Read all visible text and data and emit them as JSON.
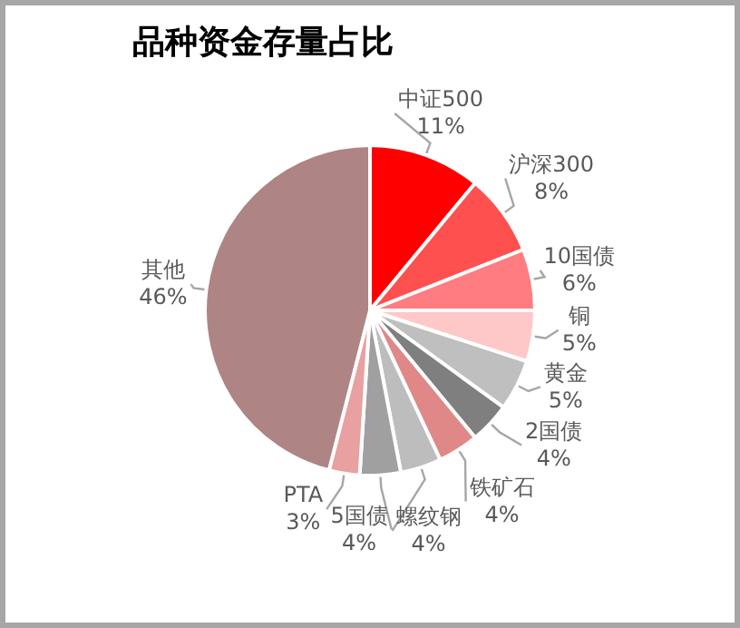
{
  "chart_data": {
    "type": "pie",
    "title": "品种资金存量占比",
    "categories": [
      "中证500",
      "沪深300",
      "10国债",
      "铜",
      "黄金",
      "2国债",
      "铁矿石",
      "螺纹钢",
      "5国债",
      "PTA",
      "其他"
    ],
    "values": [
      11,
      8,
      6,
      5,
      5,
      4,
      4,
      4,
      4,
      3,
      46
    ],
    "value_labels": [
      "11%",
      "8%",
      "6%",
      "5%",
      "5%",
      "4%",
      "4%",
      "4%",
      "4%",
      "3%",
      "46%"
    ],
    "colors": [
      "#ff0000",
      "#ff5050",
      "#ff7c80",
      "#ffc8c8",
      "#bfbfbf",
      "#7f7f7f",
      "#e08888",
      "#bdbdbd",
      "#a0a0a0",
      "#e8a0a0",
      "#ae8484"
    ]
  }
}
